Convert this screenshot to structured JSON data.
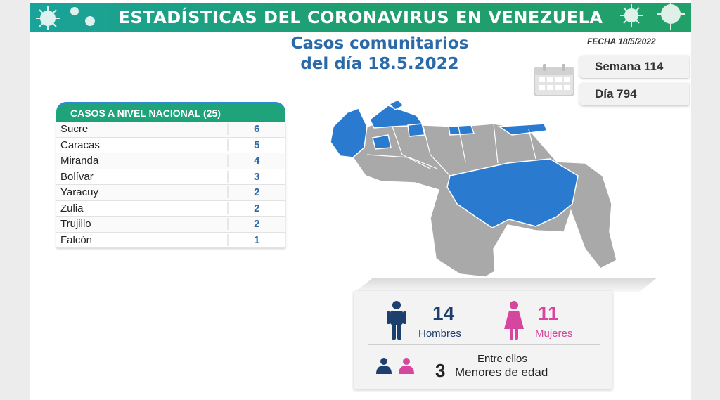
{
  "banner": {
    "title": "ESTADÍSTICAS DEL CORONAVIRUS EN VENEZUELA"
  },
  "header": {
    "subtitle_line1": "Casos comunitarios",
    "subtitle_line2": "del día 18.5.2022",
    "fecha": "FECHA 18/5/2022"
  },
  "counters": {
    "semana": "Semana 114",
    "dia": "Día 794"
  },
  "table": {
    "heading": "CASOS A NIVEL NACIONAL (25)",
    "rows": [
      {
        "name": "Sucre",
        "value": "6"
      },
      {
        "name": "Caracas",
        "value": "5"
      },
      {
        "name": "Miranda",
        "value": "4"
      },
      {
        "name": "Bolívar",
        "value": "3"
      },
      {
        "name": "Yaracuy",
        "value": "2"
      },
      {
        "name": "Zulia",
        "value": "2"
      },
      {
        "name": "Trujillo",
        "value": "2"
      },
      {
        "name": "Falcón",
        "value": "1"
      }
    ]
  },
  "stats": {
    "hombres_count": "14",
    "hombres_label": "Hombres",
    "mujeres_count": "11",
    "mujeres_label": "Mujeres",
    "entre_ellos": "Entre ellos",
    "menores_count": "3",
    "menores_label": "Menores de edad"
  },
  "colors": {
    "banner": "#1f9e6e",
    "title_blue": "#2a6aa8",
    "map_highlight": "#2a7ad0",
    "map_gray": "#a9a9a9",
    "male": "#1d3f6e",
    "female": "#d6459e"
  },
  "icons": {
    "virus": "virus-icon",
    "calendar": "calendar-icon",
    "male": "male-person-icon",
    "female": "female-person-icon",
    "child_male": "child-male-icon",
    "child_female": "child-female-icon"
  }
}
